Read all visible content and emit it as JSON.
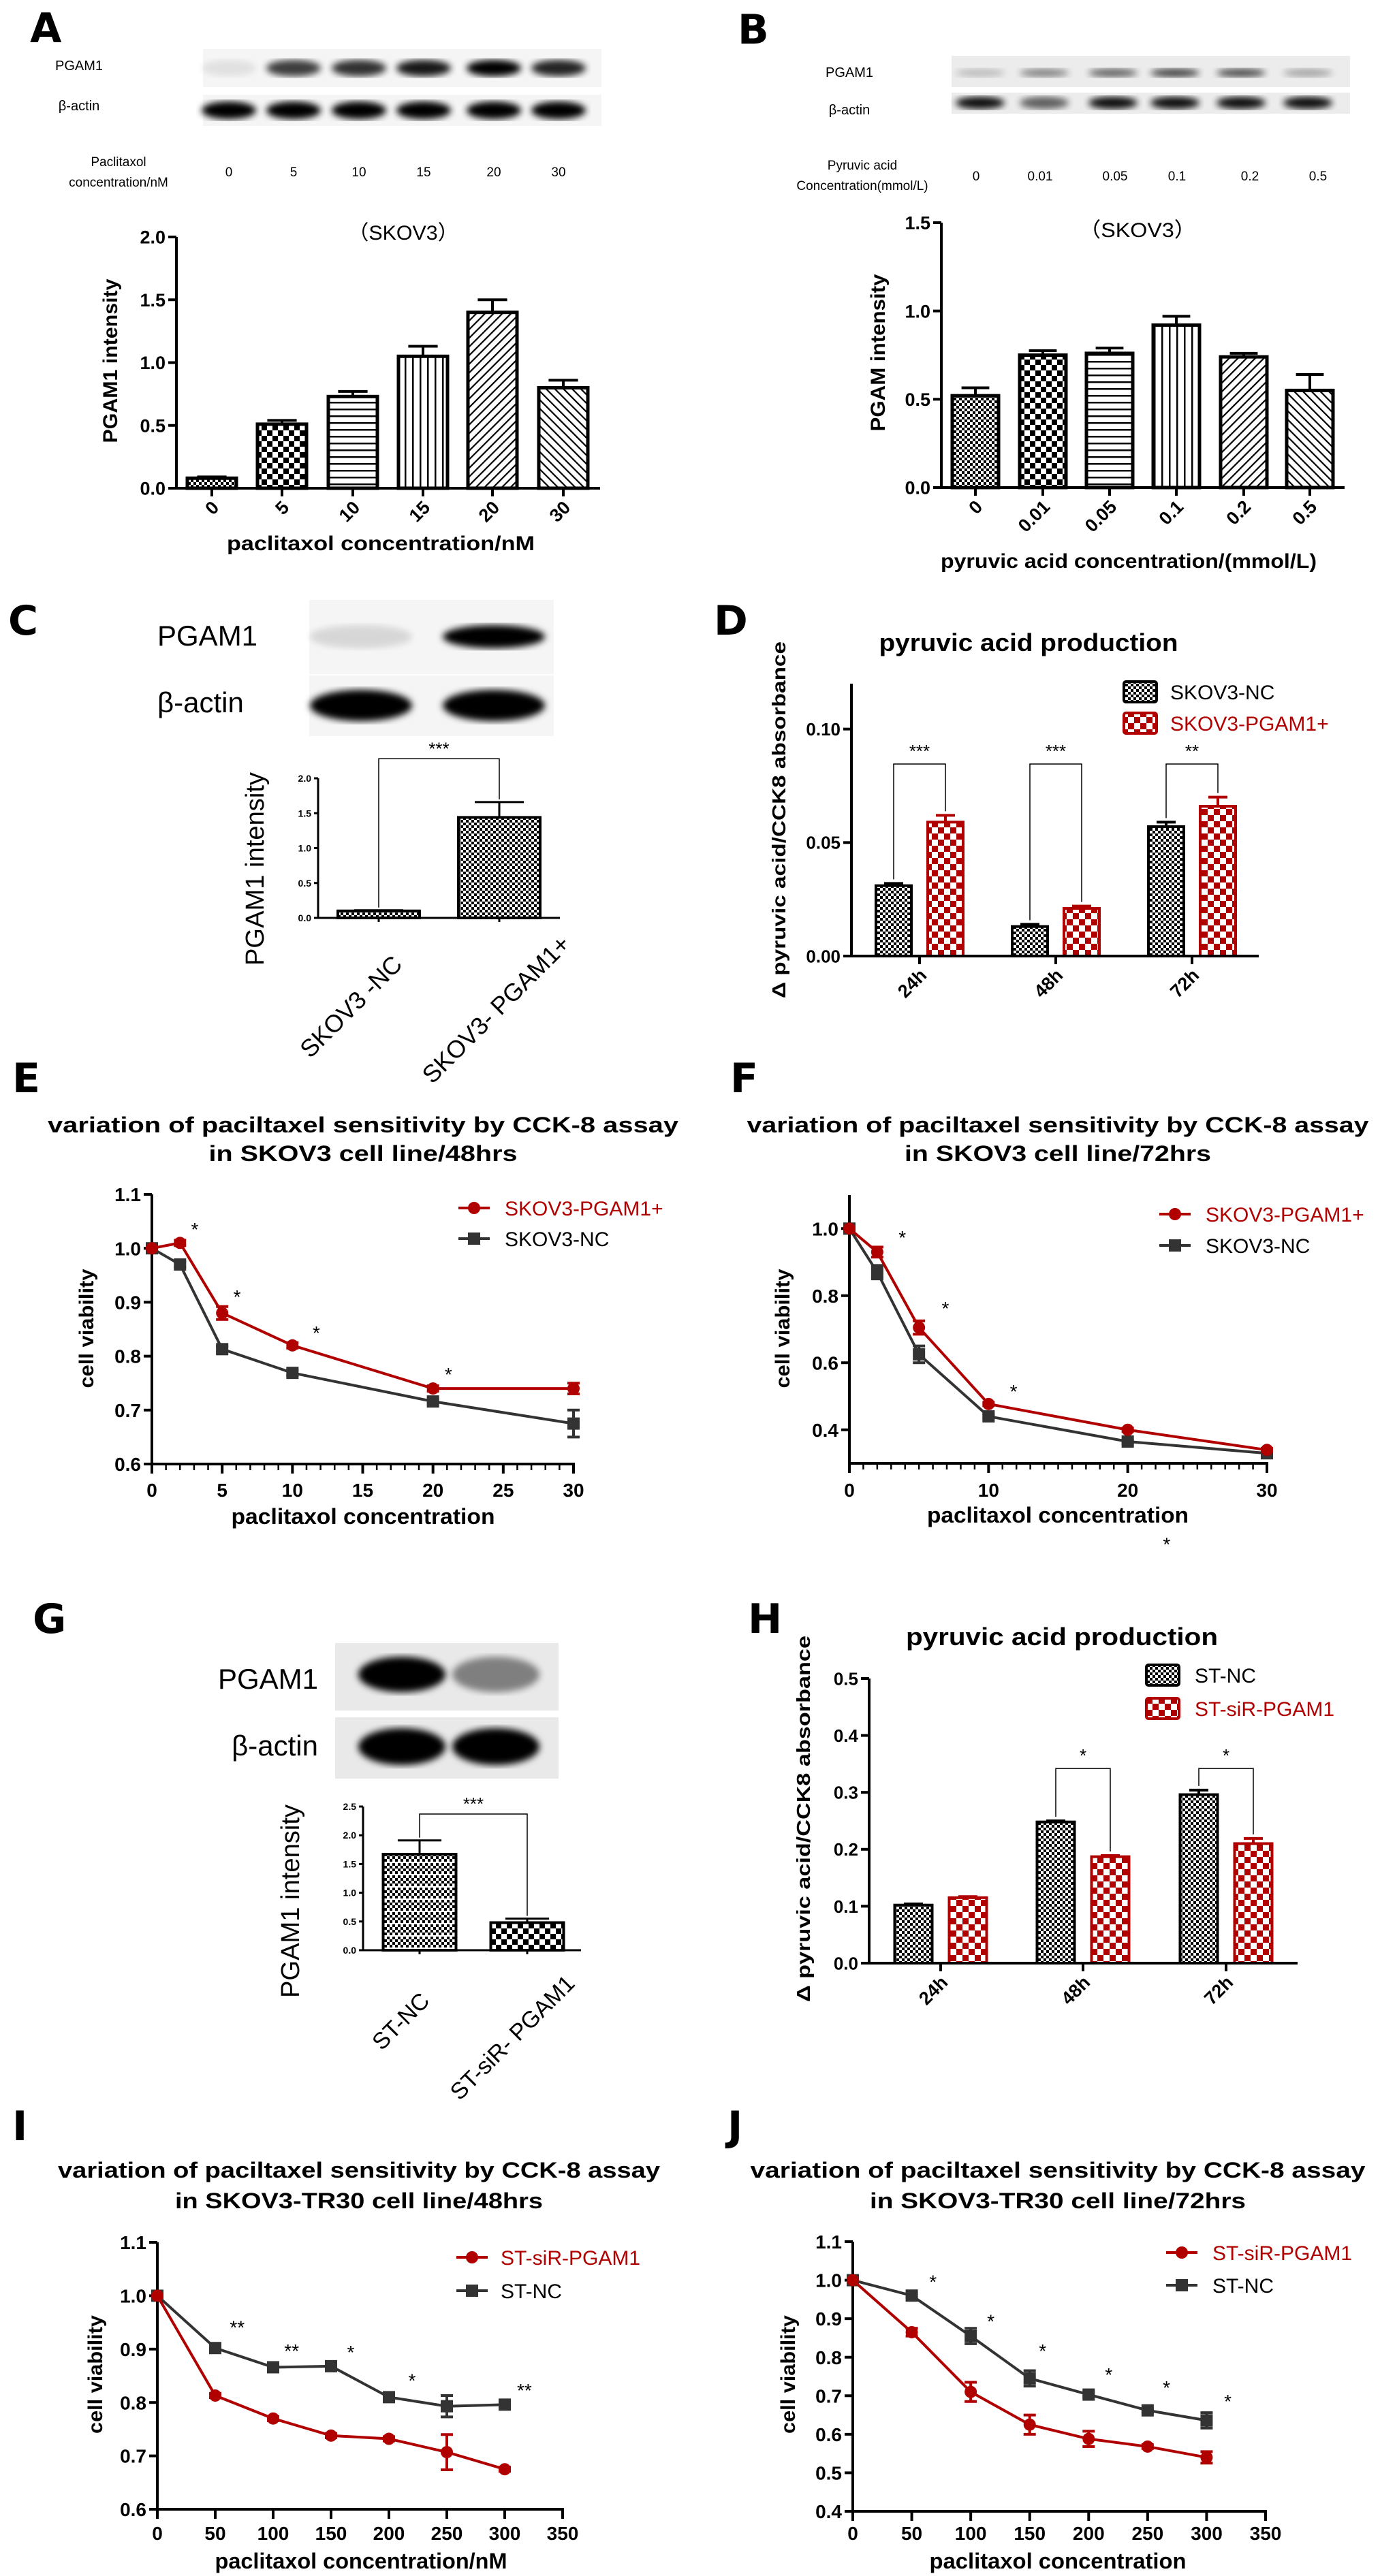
{
  "panel_labels": [
    "A",
    "B",
    "C",
    "D",
    "E",
    "F",
    "G",
    "H",
    "I",
    "J"
  ],
  "blots": {
    "A": {
      "rows": [
        "PGAM1",
        "β-actin"
      ],
      "condition": [
        "Paclitaxol",
        "concentration/nM"
      ],
      "lanes": [
        "0",
        "5",
        "10",
        "15",
        "20",
        "30"
      ],
      "band_intensity": [
        [
          0.08,
          0.75,
          0.8,
          0.9,
          1.0,
          0.85
        ],
        [
          1,
          1,
          1,
          1,
          1,
          1
        ]
      ]
    },
    "B": {
      "rows": [
        "PGAM1",
        "β-actin"
      ],
      "condition": [
        "Pyruvic acid",
        "Concentration(mmol/L)"
      ],
      "lanes": [
        "0",
        "0.01",
        "0.05",
        "0.1",
        "0.2",
        "0.5"
      ],
      "band_intensity": [
        [
          0.2,
          0.45,
          0.6,
          0.75,
          0.7,
          0.3
        ],
        [
          0.95,
          0.6,
          0.95,
          0.95,
          0.95,
          0.95
        ]
      ]
    },
    "C": {
      "rows": [
        "PGAM1",
        "β-actin"
      ],
      "band_intensity": [
        [
          0.12,
          1.0
        ],
        [
          1,
          1
        ]
      ]
    },
    "G": {
      "rows": [
        "PGAM1",
        "β-actin"
      ],
      "band_intensity": [
        [
          1.0,
          0.45
        ],
        [
          1,
          1
        ]
      ]
    }
  },
  "colors": {
    "red_series": "#b00000",
    "dark_series": "#333333",
    "black": "#000000"
  },
  "chart_data": [
    {
      "panel": "A",
      "type": "bar",
      "title": "（SKOV3）",
      "xlabel": "paclitaxol concentration/nM",
      "ylabel": "PGAM1 intensity",
      "categories": [
        "0",
        "5",
        "10",
        "15",
        "20",
        "30"
      ],
      "values": [
        0.08,
        0.51,
        0.73,
        1.05,
        1.4,
        0.8
      ],
      "errors": [
        0.01,
        0.03,
        0.04,
        0.08,
        0.1,
        0.06
      ],
      "ylim": [
        0,
        2.0
      ],
      "yticks": [
        "0.0",
        "0.5",
        "1.0",
        "1.5",
        "2.0"
      ],
      "grid": false
    },
    {
      "panel": "B",
      "type": "bar",
      "title": "（SKOV3）",
      "xlabel": "pyruvic acid concentration/(mmol/L)",
      "ylabel": "PGAM intensity",
      "categories": [
        "0",
        "0.01",
        "0.05",
        "0.1",
        "0.2",
        "0.5"
      ],
      "values": [
        0.52,
        0.75,
        0.76,
        0.92,
        0.74,
        0.55
      ],
      "errors": [
        0.045,
        0.025,
        0.03,
        0.05,
        0.02,
        0.09
      ],
      "ylim": [
        0,
        1.5
      ],
      "yticks": [
        "0.0",
        "0.5",
        "1.0",
        "1.5"
      ],
      "grid": false
    },
    {
      "panel": "C",
      "type": "bar",
      "xlabel": "",
      "ylabel": "PGAM1 intensity",
      "categories": [
        "SKOV3 -NC",
        "SKOV3- PGAM1+"
      ],
      "values": [
        0.1,
        1.44
      ],
      "errors": [
        0.01,
        0.22
      ],
      "ylim": [
        0,
        2.0
      ],
      "yticks": [
        "0.0",
        "0.5",
        "1.0",
        "1.5",
        "2.0"
      ],
      "grid": false,
      "annotations": [
        {
          "between": [
            0,
            1
          ],
          "y": 2.28,
          "text": "***"
        }
      ]
    },
    {
      "panel": "D",
      "type": "bar",
      "title": "pyruvic acid production",
      "xlabel": "",
      "ylabel": "Δ pyruvic acid/CCK8 absorbance",
      "categories": [
        "24h",
        "48h",
        "72h"
      ],
      "series": [
        {
          "name": "SKOV3-NC",
          "values": [
            0.031,
            0.013,
            0.057
          ],
          "errors": [
            0.001,
            0.001,
            0.002
          ],
          "color": "#000000"
        },
        {
          "name": "SKOV3-PGAM1+",
          "values": [
            0.059,
            0.021,
            0.066
          ],
          "errors": [
            0.003,
            0.001,
            0.004
          ],
          "color": "#b00000"
        }
      ],
      "ylim": [
        0,
        0.12
      ],
      "yticks": [
        "0.00",
        "0.05",
        "0.10"
      ],
      "legend": "top-right",
      "grid": false,
      "annotations": [
        {
          "group": 0,
          "y": 0.0846,
          "text": "***"
        },
        {
          "group": 1,
          "y": 0.0846,
          "text": "***"
        },
        {
          "group": 2,
          "y": 0.0846,
          "text": "**"
        }
      ]
    },
    {
      "panel": "E",
      "type": "line",
      "title": [
        "variation of paciltaxel sensitivity by CCK-8 assay",
        "in SKOV3 cell line/48hrs"
      ],
      "xlabel": "paclitaxol concentration",
      "ylabel": "cell viability",
      "x": [
        0,
        2,
        5,
        10,
        20,
        30
      ],
      "series": [
        {
          "name": "SKOV3-PGAM1+",
          "marker": "circle",
          "color": "#b00000",
          "values": [
            1.0,
            1.01,
            0.88,
            0.82,
            0.74,
            0.74
          ],
          "errors": [
            0,
            0.005,
            0.012,
            0.005,
            0.005,
            0.01
          ]
        },
        {
          "name": "SKOV3-NC",
          "marker": "square",
          "color": "#333333",
          "values": [
            1.0,
            0.97,
            0.813,
            0.769,
            0.716,
            0.675
          ],
          "errors": [
            0,
            0.005,
            0.005,
            0.005,
            0.005,
            0.025
          ]
        }
      ],
      "xlim": [
        0,
        30
      ],
      "ylim": [
        0.6,
        1.1
      ],
      "xticks": [
        "0",
        "5",
        "10",
        "15",
        "20",
        "25",
        "30"
      ],
      "yticks": [
        "0.6",
        "0.7",
        "0.8",
        "0.9",
        "1.0",
        "1.1"
      ],
      "legend": "top-right",
      "grid": false,
      "annotations": [
        {
          "x": 3.05,
          "y": 1.038,
          "text": "*"
        },
        {
          "x": 6.06,
          "y": 0.913,
          "text": "*"
        },
        {
          "x": 11.7,
          "y": 0.846,
          "text": "*"
        },
        {
          "x": 21.1,
          "y": 0.769,
          "text": "*"
        }
      ]
    },
    {
      "panel": "F",
      "type": "line",
      "title": [
        "variation of paciltaxel sensitivity by CCK-8 assay",
        "in SKOV3 cell line/72hrs"
      ],
      "xlabel": "paclitaxol concentration",
      "ylabel": "cell viability",
      "x": [
        0,
        2,
        5,
        10,
        20,
        30
      ],
      "series": [
        {
          "name": "SKOV3-PGAM1+",
          "marker": "circle",
          "color": "#b00000",
          "values": [
            1.0,
            0.93,
            0.705,
            0.477,
            0.4,
            0.34
          ],
          "errors": [
            0,
            0.015,
            0.02,
            0.005,
            0.005,
            0.005
          ]
        },
        {
          "name": "SKOV3-NC",
          "marker": "square",
          "color": "#333333",
          "values": [
            1.0,
            0.87,
            0.625,
            0.44,
            0.365,
            0.33
          ],
          "errors": [
            0,
            0.02,
            0.025,
            0.005,
            0.005,
            0.005
          ]
        }
      ],
      "xlim": [
        0,
        30
      ],
      "ylim": [
        0.3,
        1.1
      ],
      "xticks": [
        "0",
        "10",
        "20",
        "30"
      ],
      "yticks": [
        "0.4",
        "0.6",
        "0.8",
        "1.0"
      ],
      "legend": "top-right",
      "grid": false,
      "annotations": [
        {
          "x": 3.8,
          "y": 0.978,
          "text": "*"
        },
        {
          "x": 6.9,
          "y": 0.767,
          "text": "*"
        },
        {
          "x": 11.8,
          "y": 0.519,
          "text": "*"
        },
        {
          "x": 22.8,
          "y": 0.1,
          "text": "*"
        }
      ]
    },
    {
      "panel": "G",
      "type": "bar",
      "xlabel": "",
      "ylabel": "PGAM1 intensity",
      "categories": [
        "ST-NC",
        "ST-siR- PGAM1"
      ],
      "values": [
        1.67,
        0.48
      ],
      "errors": [
        0.24,
        0.07
      ],
      "ylim": [
        0,
        2.5
      ],
      "yticks": [
        "0.0",
        "0.5",
        "1.0",
        "1.5",
        "2.0",
        "2.5"
      ],
      "grid": false,
      "annotations": [
        {
          "between": [
            0,
            1
          ],
          "y": 2.37,
          "text": "***"
        }
      ]
    },
    {
      "panel": "H",
      "type": "bar",
      "title": "pyruvic acid production",
      "xlabel": "",
      "ylabel": "Δ pyruvic acid/CCK8 absorbance",
      "categories": [
        "24h",
        "48h",
        "72h"
      ],
      "series": [
        {
          "name": "ST-NC",
          "values": [
            0.102,
            0.248,
            0.296
          ],
          "errors": [
            0.002,
            0.002,
            0.008
          ],
          "color": "#000000"
        },
        {
          "name": "ST-siR-PGAM1",
          "values": [
            0.115,
            0.187,
            0.21
          ],
          "errors": [
            0.002,
            0.002,
            0.009
          ],
          "color": "#b00000"
        }
      ],
      "ylim": [
        0,
        0.5
      ],
      "yticks": [
        "0.0",
        "0.1",
        "0.2",
        "0.3",
        "0.4",
        "0.5"
      ],
      "legend": "top-right",
      "grid": false,
      "annotations": [
        {
          "group": 1,
          "y": 0.342,
          "text": "*"
        },
        {
          "group": 2,
          "y": 0.342,
          "text": "*"
        }
      ]
    },
    {
      "panel": "I",
      "type": "line",
      "title": [
        "variation of paciltaxel sensitivity by CCK-8 assay",
        "in SKOV3-TR30 cell line/48hrs"
      ],
      "xlabel": "paclitaxol concentration/nM",
      "ylabel": "cell viability",
      "x": [
        0,
        50,
        100,
        150,
        200,
        250,
        300
      ],
      "series": [
        {
          "name": "ST-siR-PGAM1",
          "marker": "circle",
          "color": "#b00000",
          "values": [
            1.0,
            0.813,
            0.77,
            0.738,
            0.732,
            0.707,
            0.675
          ],
          "errors": [
            0,
            0.004,
            0.004,
            0.004,
            0.004,
            0.033,
            0.004
          ]
        },
        {
          "name": "ST-NC",
          "marker": "square",
          "color": "#333333",
          "values": [
            1.0,
            0.902,
            0.866,
            0.868,
            0.81,
            0.793,
            0.796
          ],
          "errors": [
            0,
            0.004,
            0.004,
            0.004,
            0.004,
            0.02,
            0.004
          ]
        }
      ],
      "xlim": [
        0,
        350
      ],
      "ylim": [
        0.6,
        1.1
      ],
      "xticks": [
        "0",
        "50",
        "100",
        "150",
        "200",
        "250",
        "300",
        "350"
      ],
      "yticks": [
        "0.6",
        "0.7",
        "0.8",
        "0.9",
        "1.0",
        "1.1"
      ],
      "legend": "top-right",
      "grid": false,
      "annotations": [
        {
          "x": 69,
          "y": 0.944,
          "text": "**"
        },
        {
          "x": 116,
          "y": 0.9,
          "text": "**"
        },
        {
          "x": 167,
          "y": 0.897,
          "text": "*"
        },
        {
          "x": 220,
          "y": 0.844,
          "text": "*"
        },
        {
          "x": 317,
          "y": 0.826,
          "text": "**"
        }
      ]
    },
    {
      "panel": "J",
      "type": "line",
      "title": [
        "variation of paciltaxel sensitivity by CCK-8 assay",
        "in SKOV3-TR30 cell line/72hrs"
      ],
      "xlabel": "paclitaxol concentration",
      "ylabel": "cell viability",
      "x": [
        0,
        50,
        100,
        150,
        200,
        250,
        300
      ],
      "series": [
        {
          "name": "ST-siR-PGAM1",
          "marker": "circle",
          "color": "#b00000",
          "values": [
            1.0,
            0.865,
            0.71,
            0.625,
            0.588,
            0.568,
            0.54
          ],
          "errors": [
            0,
            0.01,
            0.025,
            0.025,
            0.02,
            0.005,
            0.015
          ]
        },
        {
          "name": "ST-NC",
          "marker": "square",
          "color": "#333333",
          "values": [
            1.0,
            0.96,
            0.855,
            0.745,
            0.703,
            0.662,
            0.636
          ],
          "errors": [
            0,
            0.005,
            0.02,
            0.02,
            0.005,
            0.005,
            0.02
          ]
        }
      ],
      "xlim": [
        0,
        350
      ],
      "ylim": [
        0.4,
        1.1
      ],
      "xticks": [
        "0",
        "50",
        "100",
        "150",
        "200",
        "250",
        "300",
        "350"
      ],
      "yticks": [
        "0.4",
        "0.5",
        "0.6",
        "0.7",
        "0.8",
        "0.9",
        "1.0",
        "1.1"
      ],
      "legend": "top-right",
      "grid": false,
      "annotations": [
        {
          "x": 68,
          "y": 1.0,
          "text": "*"
        },
        {
          "x": 117,
          "y": 0.898,
          "text": "*"
        },
        {
          "x": 161,
          "y": 0.821,
          "text": "*"
        },
        {
          "x": 217,
          "y": 0.759,
          "text": "*"
        },
        {
          "x": 266,
          "y": 0.725,
          "text": "*"
        },
        {
          "x": 318,
          "y": 0.69,
          "text": "*"
        }
      ]
    }
  ]
}
